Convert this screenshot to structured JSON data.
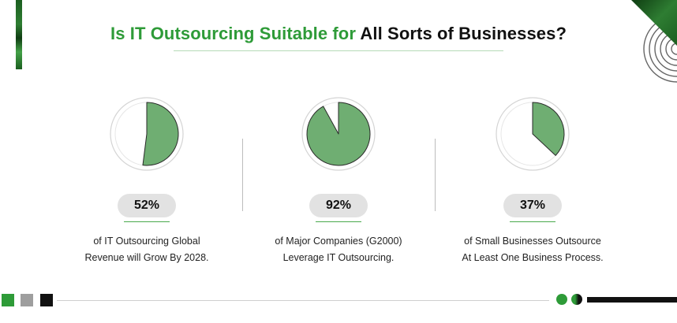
{
  "title": {
    "accent": "Is IT Outsourcing Suitable for",
    "rest": "All Sorts of Businesses?"
  },
  "stats": [
    {
      "value": "52%",
      "fraction": 0.52,
      "line1": "of IT Outsourcing Global",
      "line2": "Revenue will Grow By 2028."
    },
    {
      "value": "92%",
      "fraction": 0.92,
      "line1": "of Major Companies (G2000)",
      "line2": "Leverage IT Outsourcing."
    },
    {
      "value": "37%",
      "fraction": 0.37,
      "line1": "of Small Businesses Outsource",
      "line2": "At Least One Business Process."
    }
  ],
  "colors": {
    "accent_green": "#2e9b38",
    "pie_fill": "#6fae72",
    "badge_bg": "#e2e2e2",
    "footer_square_1": "#2e9b38",
    "footer_square_2": "#9e9e9e",
    "footer_square_3": "#111111"
  }
}
